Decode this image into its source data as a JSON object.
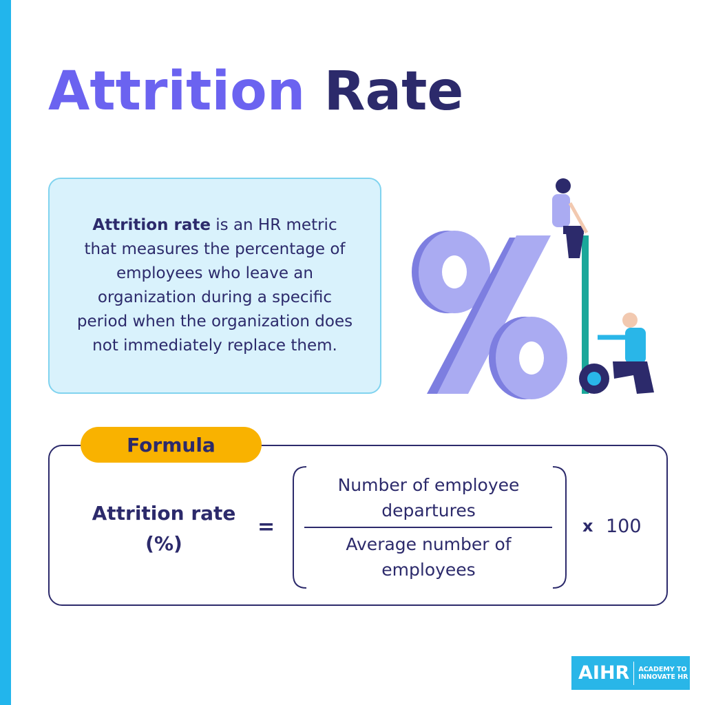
{
  "title": {
    "part1": "Attrition",
    "part2": "Rate"
  },
  "definition": {
    "term": "Attrition rate",
    "text": "is an HR metric that measures the percentage of employees who leave an organization during a specific period when the organization does not immediately replace them."
  },
  "formula": {
    "label": "Formula",
    "lhs": "Attrition rate (%)",
    "equals": "=",
    "numerator": "Number of employee departures",
    "denominator": "Average number of employees",
    "times": "x",
    "multiplier": 100
  },
  "logo": {
    "name": "AIHR",
    "tagline": "ACADEMY TO INNOVATE HR"
  }
}
